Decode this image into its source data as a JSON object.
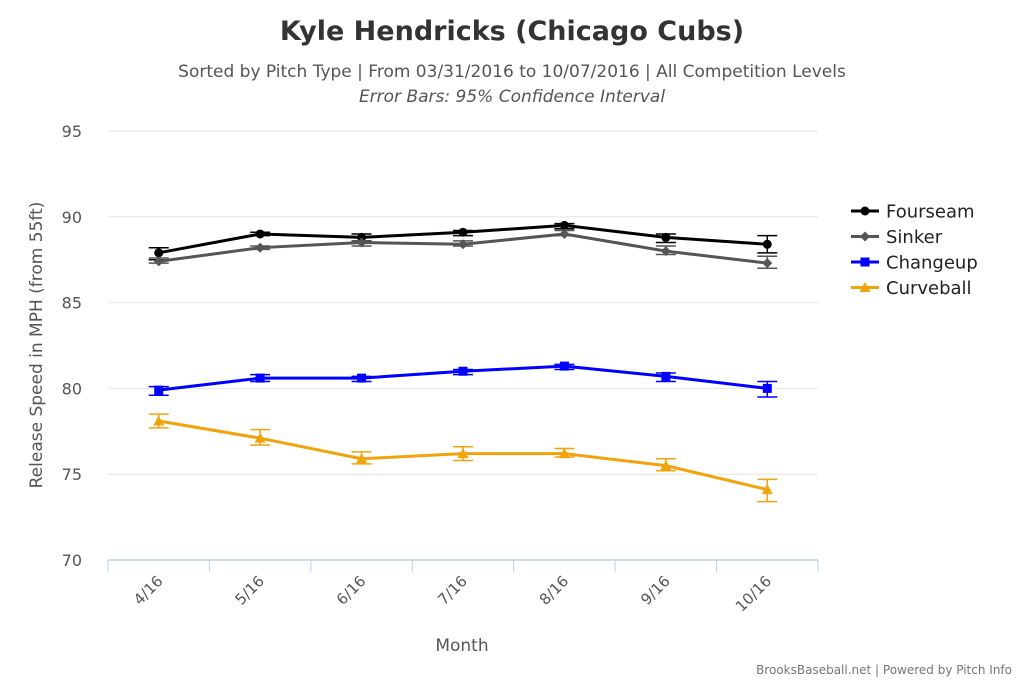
{
  "chart_data": {
    "type": "line",
    "title": "Kyle Hendricks (Chicago Cubs)",
    "subtitle": "Sorted by Pitch Type | From 03/31/2016 to 10/07/2016 | All Competition Levels",
    "subtitle2": "Error Bars: 95% Confidence Interval",
    "xlabel": "Month",
    "ylabel": "Release Speed in MPH (from 55ft)",
    "categories": [
      "4/16",
      "5/16",
      "6/16",
      "7/16",
      "8/16",
      "9/16",
      "10/16"
    ],
    "ylim": [
      70,
      95
    ],
    "yticks": [
      "70",
      "75",
      "80",
      "85",
      "90",
      "95"
    ],
    "grid": true,
    "legend_position": "right",
    "credits": "BrooksBaseball.net | Powered by Pitch Info",
    "series": [
      {
        "name": "Fourseam",
        "color": "#000000",
        "marker": "circle",
        "values": [
          87.9,
          89.0,
          88.8,
          89.1,
          89.5,
          88.8,
          88.4
        ],
        "error_low": [
          87.5,
          88.9,
          88.6,
          88.9,
          89.3,
          88.5,
          87.9
        ],
        "error_high": [
          88.2,
          89.1,
          89.0,
          89.2,
          89.6,
          89.0,
          88.9
        ]
      },
      {
        "name": "Sinker",
        "color": "#555555",
        "marker": "diamond",
        "values": [
          87.4,
          88.2,
          88.5,
          88.4,
          89.0,
          88.0,
          87.3
        ],
        "error_low": [
          87.3,
          88.1,
          88.3,
          88.3,
          88.9,
          87.8,
          87.0
        ],
        "error_high": [
          87.6,
          88.3,
          88.6,
          88.6,
          89.2,
          88.3,
          87.7
        ]
      },
      {
        "name": "Changeup",
        "color": "#0000ff",
        "marker": "square",
        "values": [
          79.9,
          80.6,
          80.6,
          81.0,
          81.3,
          80.7,
          80.0
        ],
        "error_low": [
          79.6,
          80.4,
          80.4,
          80.8,
          81.1,
          80.4,
          79.5
        ],
        "error_high": [
          80.1,
          80.8,
          80.7,
          81.1,
          81.4,
          80.9,
          80.4
        ]
      },
      {
        "name": "Curveball",
        "color": "#f0a30a",
        "marker": "triangle",
        "values": [
          78.1,
          77.1,
          75.9,
          76.2,
          76.2,
          75.5,
          74.1
        ],
        "error_low": [
          77.7,
          76.7,
          75.6,
          75.8,
          76.0,
          75.2,
          73.4
        ],
        "error_high": [
          78.5,
          77.6,
          76.3,
          76.6,
          76.5,
          75.9,
          74.7
        ]
      }
    ]
  }
}
